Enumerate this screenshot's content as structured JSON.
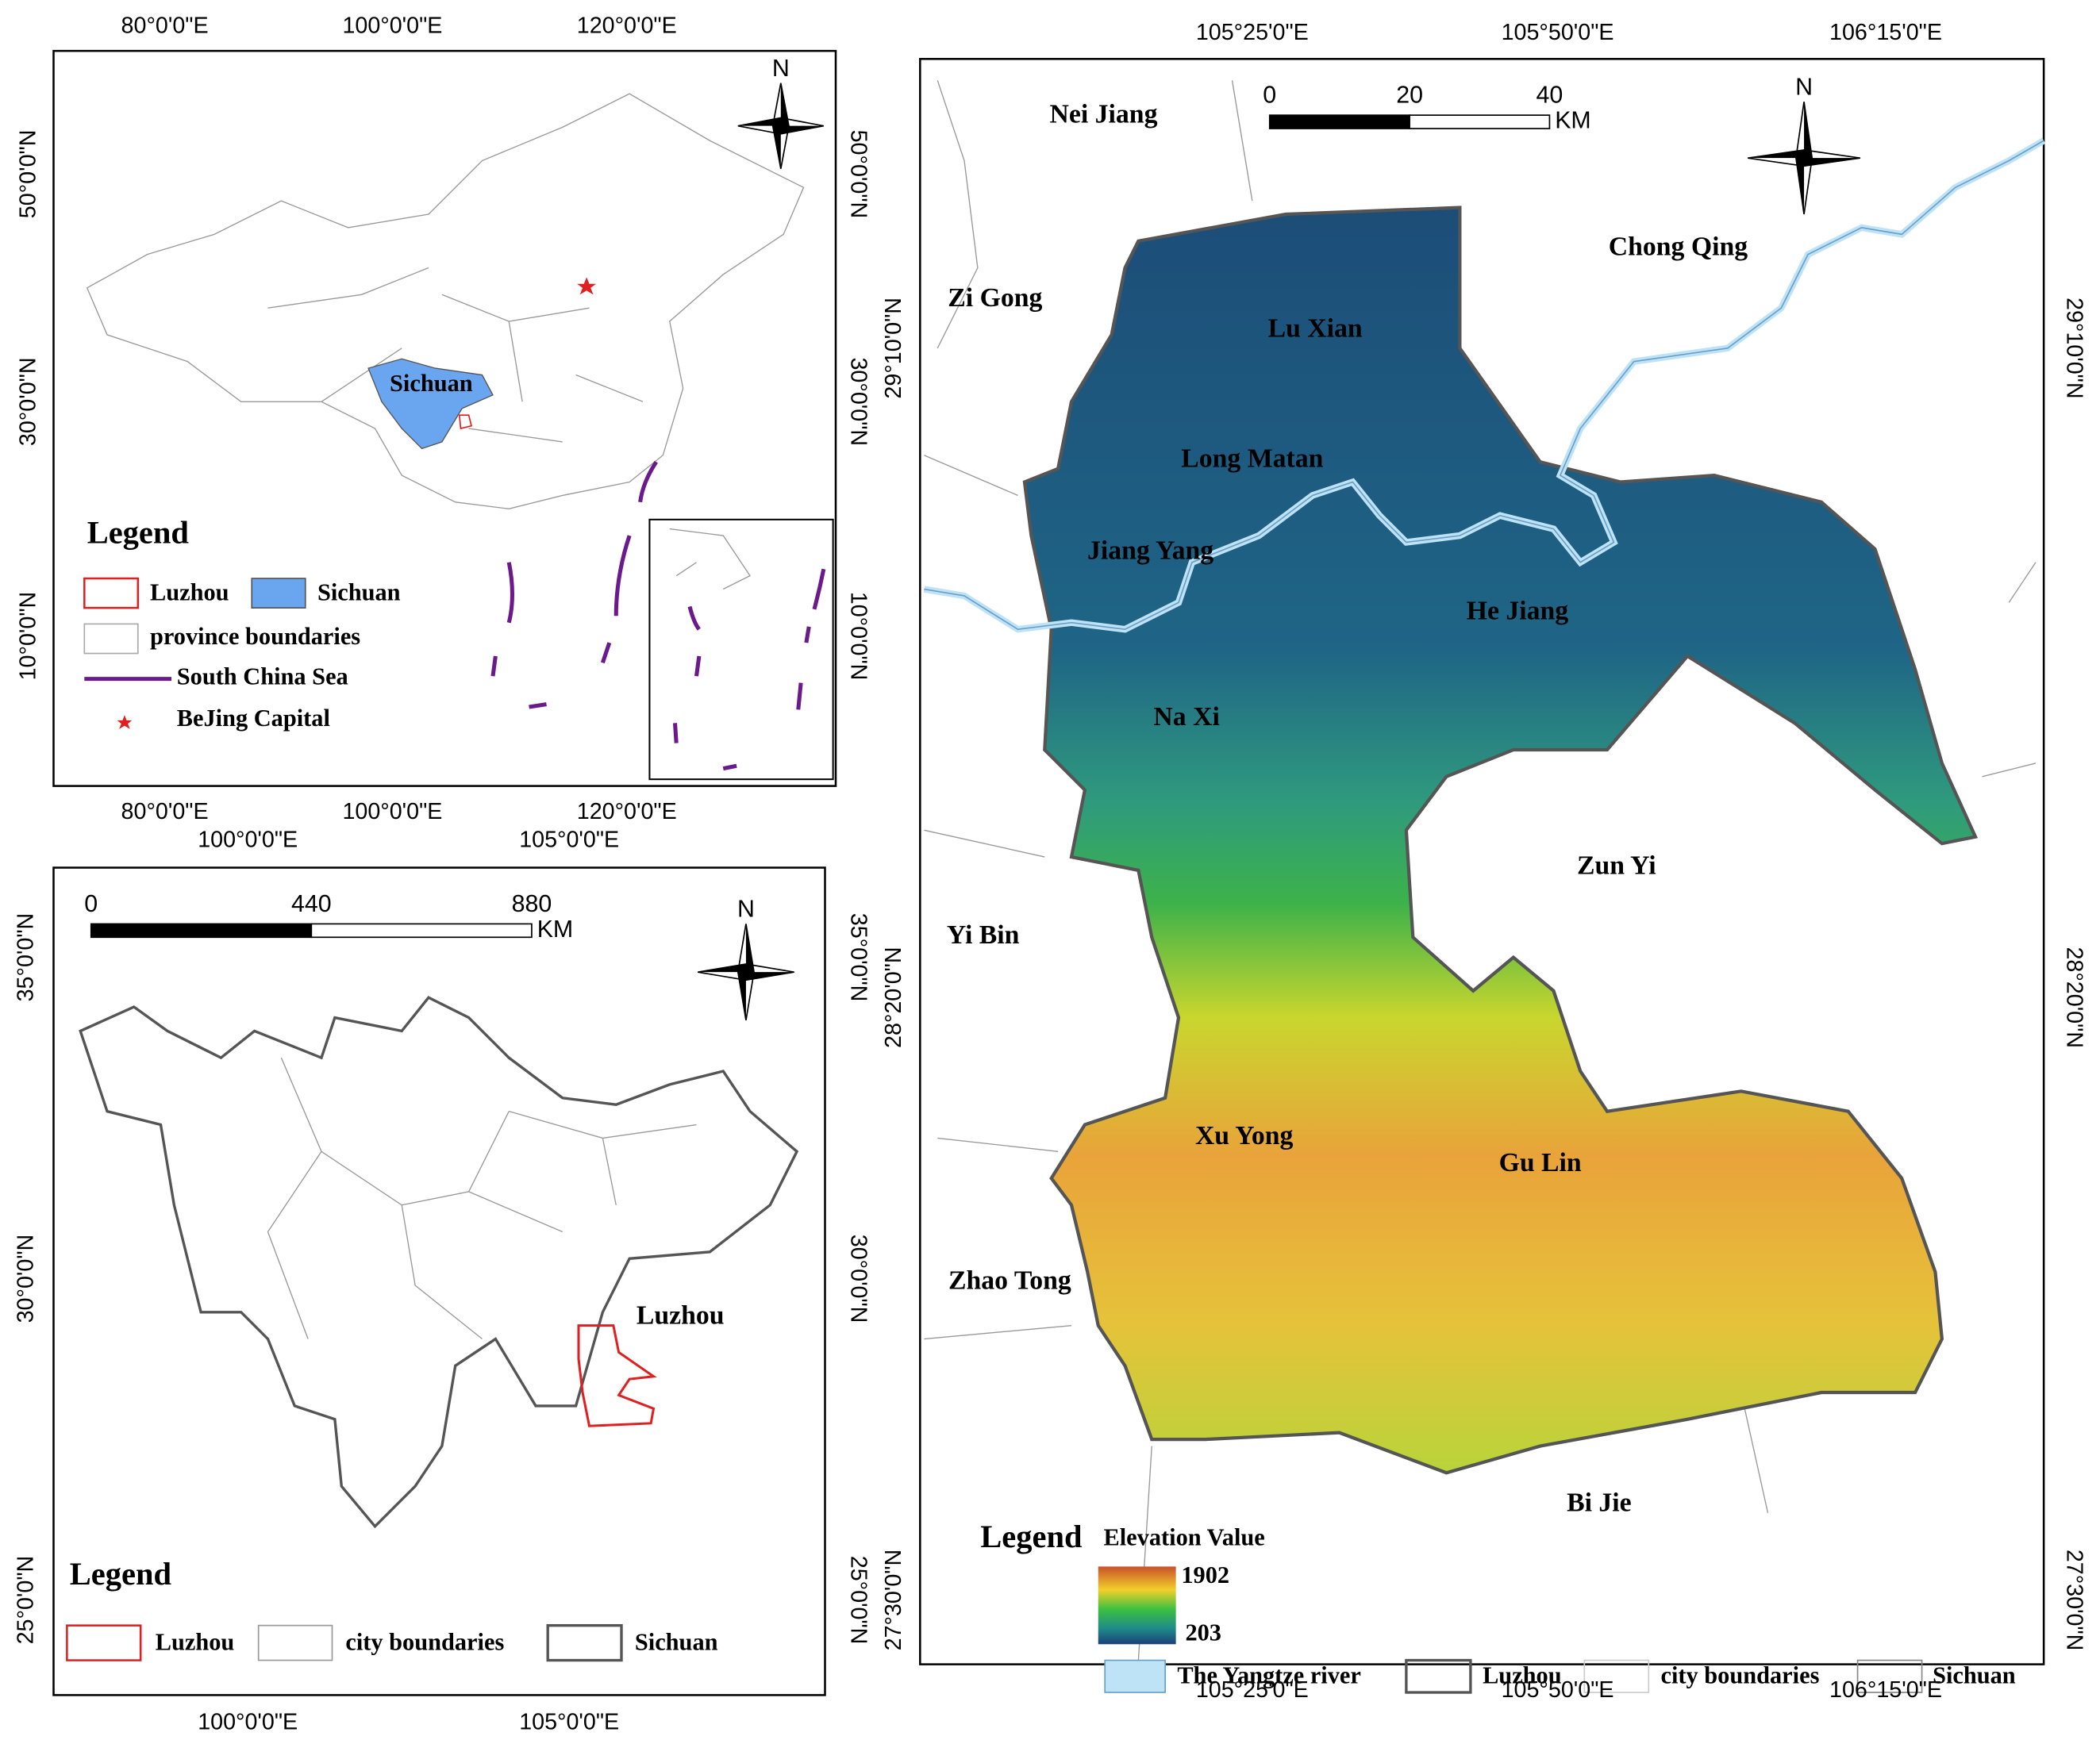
{
  "china_map": {
    "lon_labels": [
      "80°0'0\"E",
      "100°0'0\"E",
      "120°0'0\"E"
    ],
    "lat_labels": [
      "50°0'0\"N",
      "30°0'0\"N",
      "10°0'0\"N"
    ],
    "north": "N",
    "region_label": "Sichuan",
    "legend": {
      "title": "Legend",
      "items": [
        "Luzhou",
        "Sichuan",
        "province boundaries",
        "South China Sea",
        "BeJing Capital"
      ]
    }
  },
  "sichuan_map": {
    "lon_labels": [
      "100°0'0\"E",
      "105°0'0\"E"
    ],
    "lat_labels": [
      "35°0'0\"N",
      "30°0'0\"N",
      "25°0'0\"N"
    ],
    "north": "N",
    "scale_bar": {
      "ticks": [
        "0",
        "440",
        "880"
      ],
      "unit": "KM"
    },
    "region_label": "Luzhou",
    "legend": {
      "title": "Legend",
      "items": [
        "Luzhou",
        "city boundaries",
        "Sichuan"
      ]
    }
  },
  "luzhou_map": {
    "lon_labels": [
      "105°25'0\"E",
      "105°50'0\"E",
      "106°15'0\"E"
    ],
    "lat_labels": [
      "29°10'0\"N",
      "28°20'0\"N",
      "27°30'0\"N"
    ],
    "north": "N",
    "scale_bar": {
      "ticks": [
        "0",
        "20",
        "40"
      ],
      "unit": "KM"
    },
    "place_labels": [
      "Nei Jiang",
      "Zi Gong",
      "Chong Qing",
      "Lu Xian",
      "Long Matan",
      "Jiang Yang",
      "He Jiang",
      "Na Xi",
      "Zun Yi",
      "Yi Bin",
      "Xu Yong",
      "Gu Lin",
      "Zhao Tong",
      "Bi Jie"
    ],
    "legend": {
      "title": "Legend",
      "elevation_title": "Elevation Value",
      "elevation_max": "1902",
      "elevation_min": "203",
      "items": [
        "The Yangtze river",
        "Luzhou",
        "city boundaries",
        "Sichuan"
      ]
    }
  }
}
